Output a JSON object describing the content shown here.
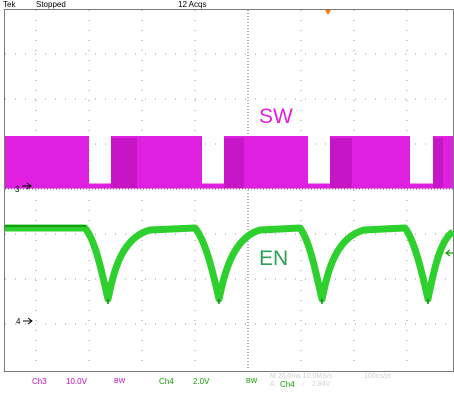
{
  "header": {
    "brand": "Tek",
    "run_state": "Stopped",
    "acquisitions": "12 Acqs"
  },
  "waveforms": {
    "ch3": {
      "name": "SW",
      "marker": "3",
      "color": "#e020e0"
    },
    "ch4": {
      "name": "EN",
      "marker": "4",
      "color": "#2ed02e"
    }
  },
  "footer": {
    "ch3_label": "Ch3",
    "ch3_scale": "10.0V",
    "ch3_bw": "BW",
    "ch4_label": "Ch4",
    "ch4_scale": "2.0V",
    "ch4_bw": "BW",
    "timebase": "M 20.0ms 10.0MS/s",
    "resolution": "100ns/pt",
    "trigger_label": "A",
    "trigger_source": "Ch4",
    "trigger_slope": "∕",
    "trigger_level": "2.84V"
  },
  "colors": {
    "ch3": "#e020e0",
    "ch4": "#2ed02e",
    "grid": "#7a7a7a",
    "trigger_marker": "#ff7a00"
  }
}
